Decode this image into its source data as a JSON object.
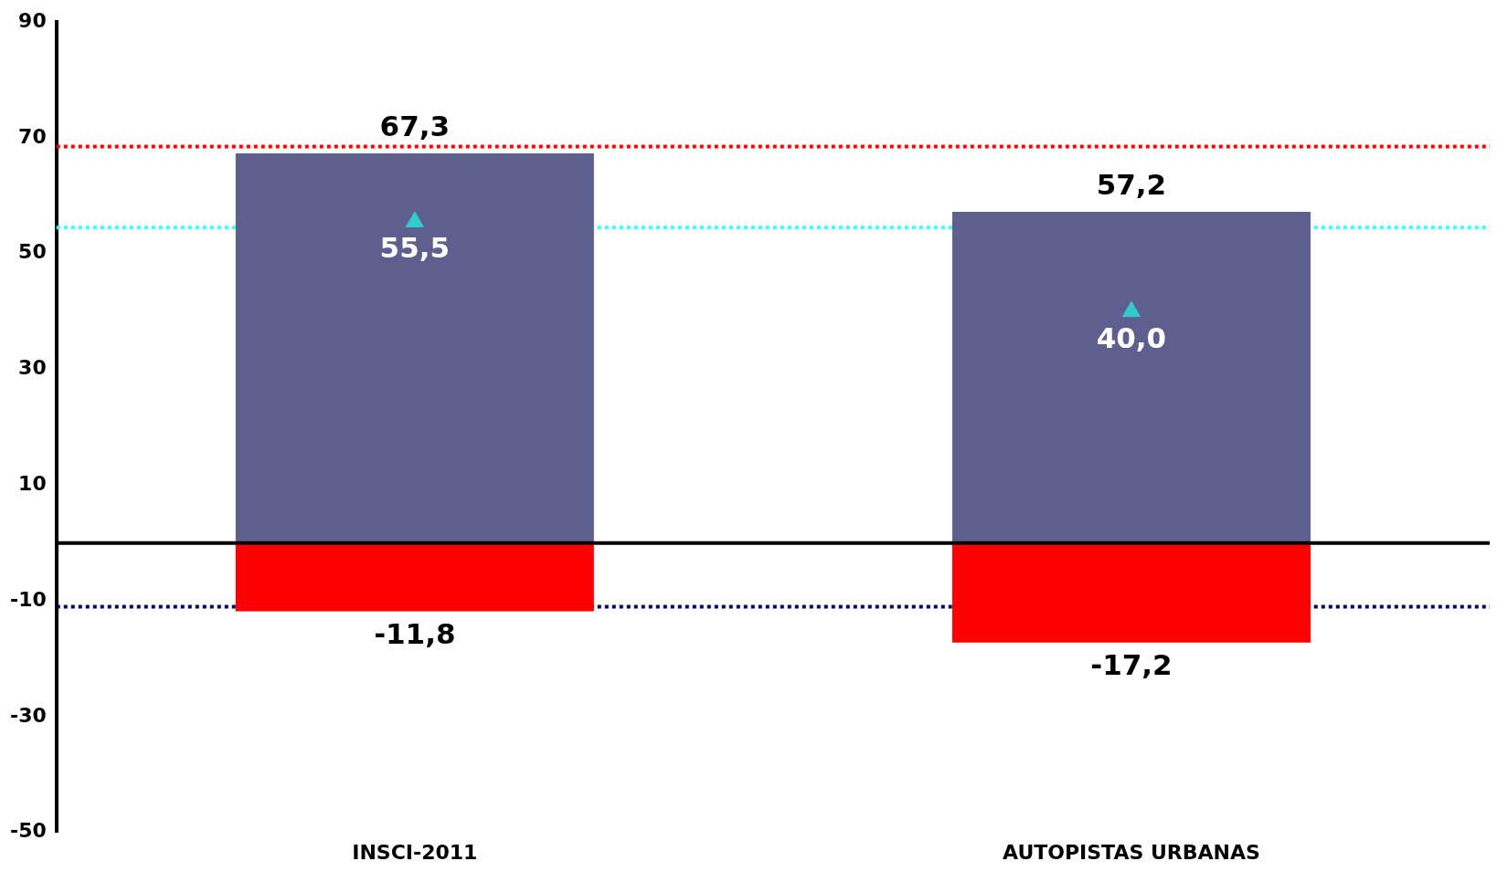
{
  "chart_data": {
    "type": "bar",
    "categories": [
      "INSCI-2011",
      "AUTOPISTAS URBANAS"
    ],
    "stacked": true,
    "series": [
      {
        "color": "#5f5f8f",
        "values": [
          67.3,
          57.2
        ],
        "value_labels": [
          "67,3",
          "57,2"
        ]
      },
      {
        "color": "#ff0000",
        "values": [
          -11.8,
          -17.2
        ],
        "value_labels": [
          "-11,8",
          "-17,2"
        ]
      },
      {
        "type": "scatter",
        "color": "#33cccc",
        "marker": "triangle",
        "x": [
          "INSCI-2011",
          "AUTOPISTAS URBANAS"
        ],
        "values": [
          55.5,
          40.0
        ],
        "value_labels": [
          "55,5",
          "40,0"
        ]
      }
    ],
    "ylim": [
      -50,
      90
    ],
    "yticks": [
      -50,
      -30,
      -10,
      10,
      30,
      50,
      70,
      90
    ],
    "grid": false,
    "legend": false,
    "ref_lines": [
      {
        "axis": "y",
        "value": 68.5,
        "color": "#ff0000",
        "line_style": "dotted"
      },
      {
        "axis": "y",
        "value": 54.5,
        "color": "#33ffff",
        "line_style": "dotted"
      },
      {
        "axis": "y",
        "value": -11.0,
        "color": "#000066",
        "line_style": "dotted"
      }
    ]
  }
}
